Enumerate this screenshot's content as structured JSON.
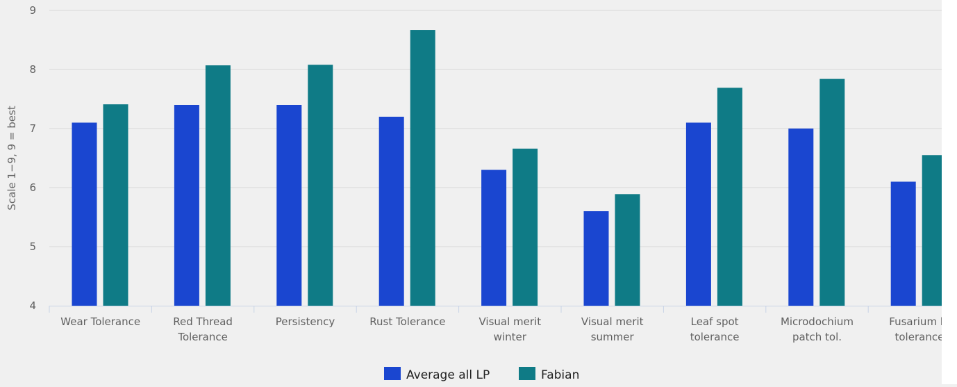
{
  "chart_data": {
    "type": "bar",
    "title": "",
    "xlabel": "",
    "ylabel": "Scale 1−9, 9 = best",
    "ylim": [
      4,
      9
    ],
    "yticks": [
      4,
      5,
      6,
      7,
      8,
      9
    ],
    "grid": true,
    "legend_position": "bottom",
    "categories": [
      [
        "Wear Tolerance"
      ],
      [
        "Red Thread",
        "Tolerance"
      ],
      [
        "Persistency"
      ],
      [
        "Rust Tolerance"
      ],
      [
        "Visual merit",
        "winter"
      ],
      [
        "Visual merit",
        "summer"
      ],
      [
        "Leaf spot",
        "tolerance"
      ],
      [
        "Microdochium",
        "patch tol."
      ],
      [
        "Fusarium bl",
        "tolerance"
      ]
    ],
    "series": [
      {
        "name": "Average all LP",
        "color": "#1a46d0",
        "values": [
          7.1,
          7.4,
          7.4,
          7.2,
          6.3,
          5.6,
          7.1,
          7.0,
          6.1
        ]
      },
      {
        "name": "Fabian",
        "color": "#0f7b86",
        "values": [
          7.41,
          8.07,
          8.08,
          8.67,
          6.66,
          5.89,
          7.69,
          7.84,
          6.55
        ]
      }
    ]
  }
}
